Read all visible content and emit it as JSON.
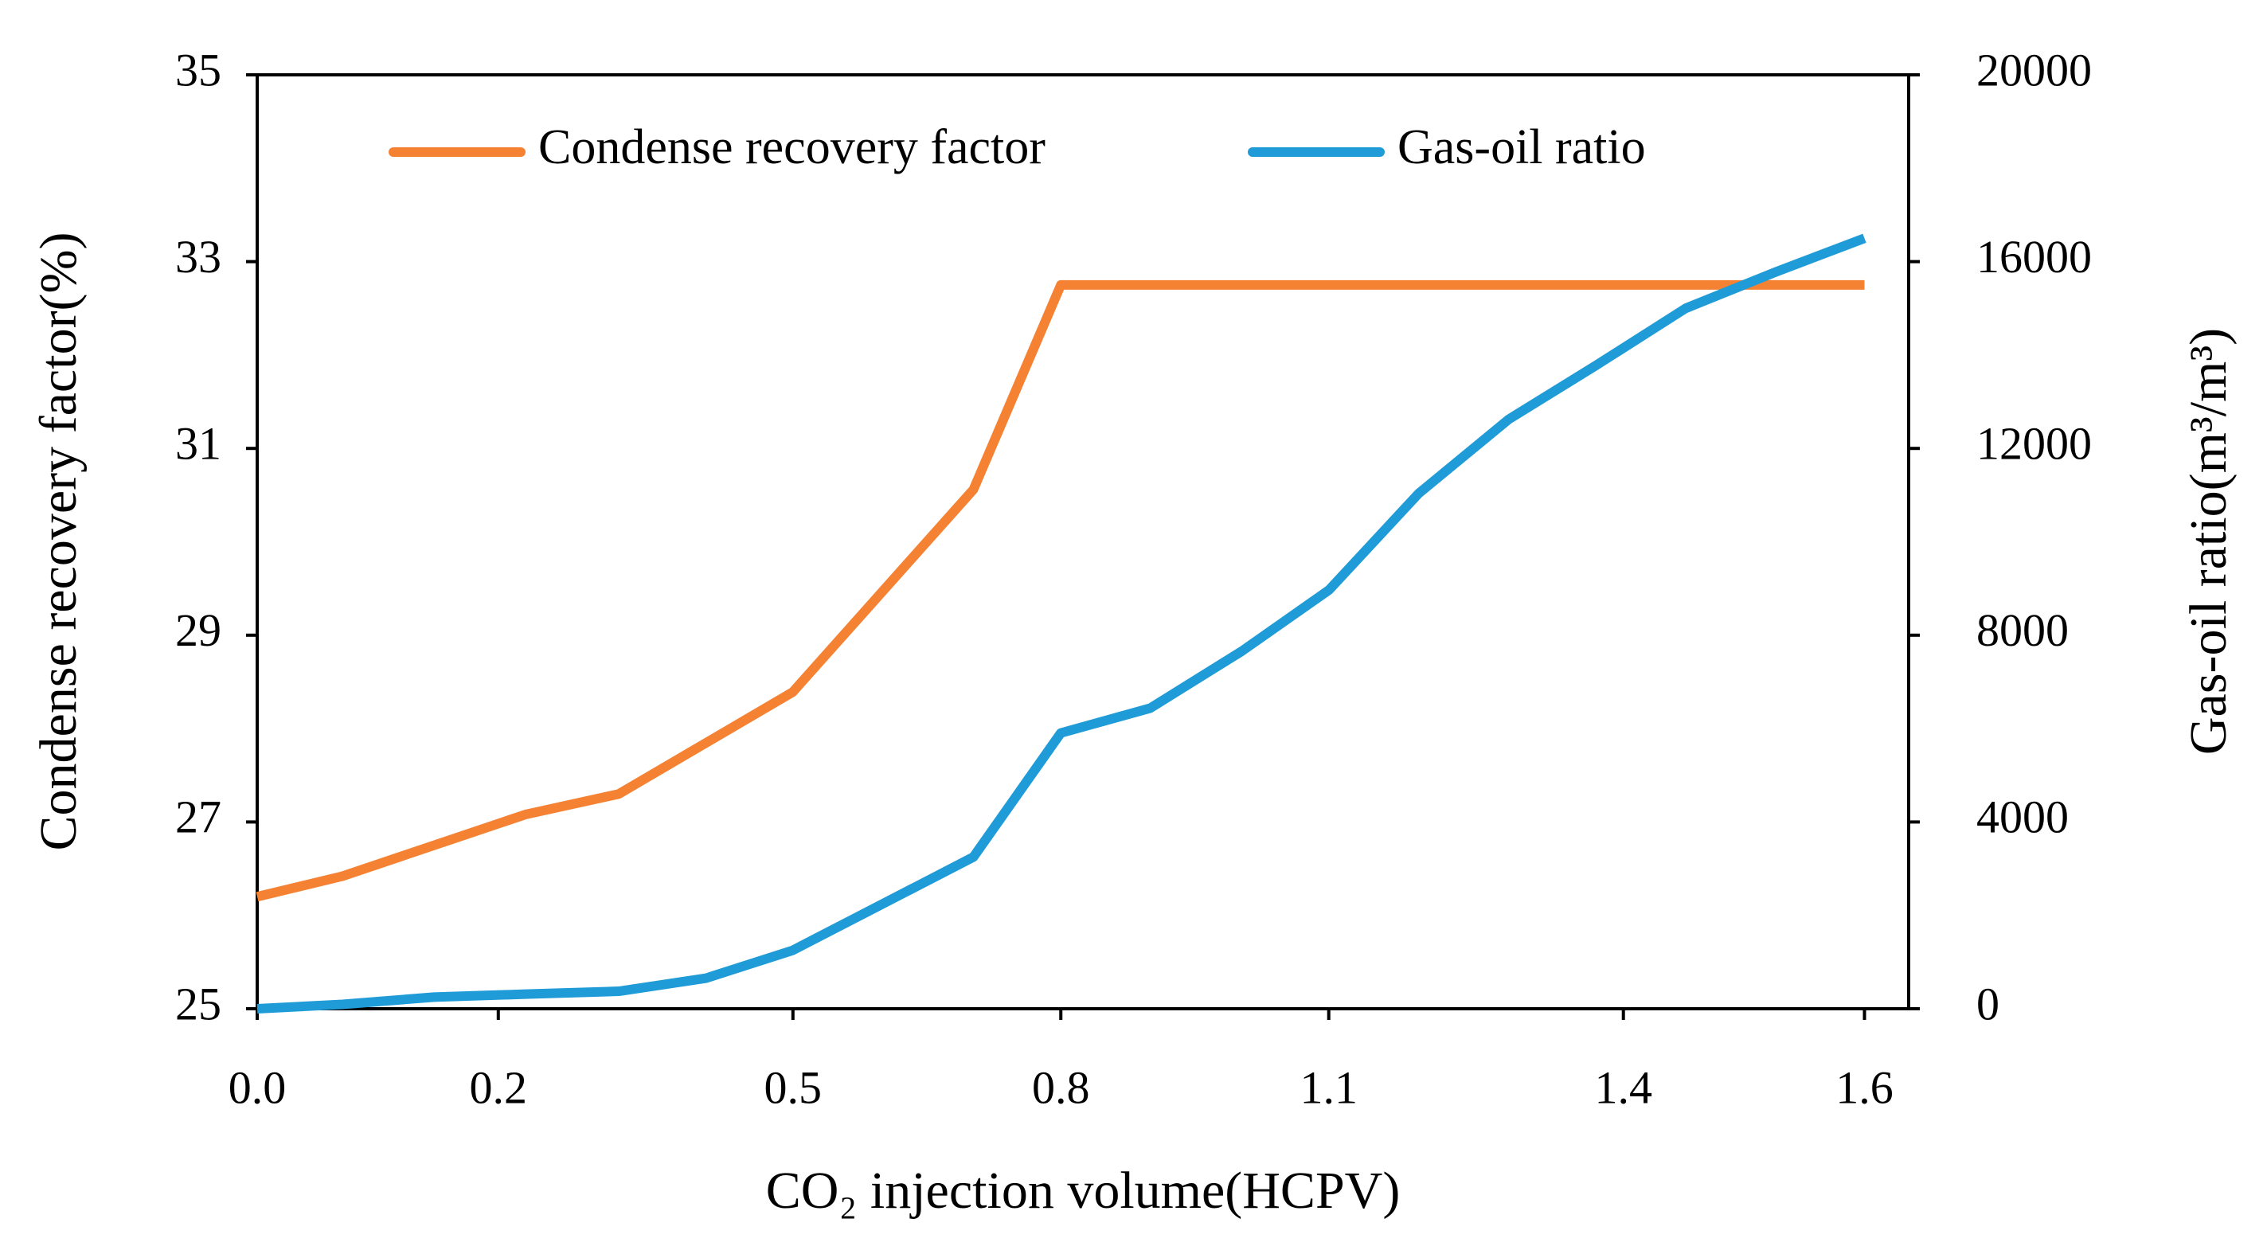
{
  "chart_data": {
    "type": "line",
    "xlabel": "CO₂ injection volume(HCPV)",
    "ylabel": "Condense recovery factor(%)",
    "y2label": "Gas-oil ratio(m³/m³)",
    "xlim": [
      0,
      1.644
    ],
    "xticks": [
      {
        "value": 0,
        "label": "0.0"
      },
      {
        "value": 0.24,
        "label": "0.2"
      },
      {
        "value": 0.5333,
        "label": "0.5"
      },
      {
        "value": 0.8,
        "label": "0.8"
      },
      {
        "value": 1.0667,
        "label": "1.1"
      },
      {
        "value": 1.36,
        "label": "1.4"
      },
      1.6
    ],
    "ylim": [
      25,
      35
    ],
    "yticks": [
      25,
      27,
      29,
      31,
      33,
      35
    ],
    "y2lim": [
      0,
      20000
    ],
    "y2ticks": [
      0,
      4000,
      8000,
      12000,
      16000,
      20000
    ],
    "legend": "top",
    "series": [
      {
        "name": "Condense recovery factor",
        "color": "#f58233",
        "x": [
          0,
          0.085,
          0.267,
          0.36,
          0.533,
          0.713,
          0.8,
          1.6
        ],
        "values": [
          26.2,
          26.42,
          27.08,
          27.3,
          28.39,
          30.56,
          32.75,
          32.75
        ]
      },
      {
        "name": "Gas-oil ratio",
        "color": "#1f9bd7",
        "axis": "y2",
        "x": [
          0,
          0.085,
          0.176,
          0.267,
          0.36,
          0.447,
          0.533,
          0.713,
          0.8,
          0.889,
          0.98,
          1.067,
          1.156,
          1.246,
          1.333,
          1.422,
          1.512,
          1.6
        ],
        "values": [
          0,
          94,
          250,
          313,
          375,
          656,
          1250,
          3250,
          5906,
          6438,
          7656,
          8969,
          11031,
          12625,
          13781,
          15000,
          15781,
          16500
        ]
      }
    ]
  }
}
